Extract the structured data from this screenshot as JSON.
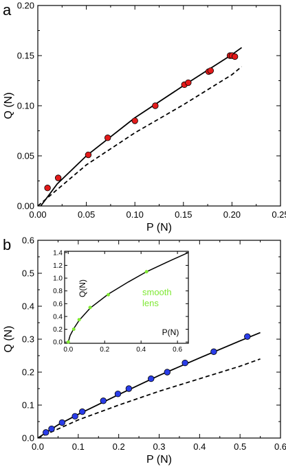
{
  "chart_data": [
    {
      "id": "a",
      "type": "scatter",
      "panel_label": "a",
      "xlabel": "P (N)",
      "ylabel": "Q (N)",
      "xlim": [
        0,
        0.25
      ],
      "ylim": [
        0,
        0.2
      ],
      "x_ticks": [
        "0.00",
        "0.05",
        "0.10",
        "0.15",
        "0.20",
        "0.25"
      ],
      "y_ticks": [
        "0.00",
        "0.05",
        "0.10",
        "0.15",
        "0.20"
      ],
      "x_tick_values": [
        0,
        0.05,
        0.1,
        0.15,
        0.2,
        0.25
      ],
      "y_tick_values": [
        0,
        0.05,
        0.1,
        0.15,
        0.2
      ],
      "marker_color": "#e31b1b",
      "series": [
        {
          "style": "markers",
          "points": [
            [
              0.01,
              0.018
            ],
            [
              0.021,
              0.028
            ],
            [
              0.052,
              0.051
            ],
            [
              0.072,
              0.068
            ],
            [
              0.1,
              0.085
            ],
            [
              0.121,
              0.1
            ],
            [
              0.151,
              0.121
            ],
            [
              0.155,
              0.123
            ],
            [
              0.176,
              0.134
            ],
            [
              0.178,
              0.135
            ],
            [
              0.198,
              0.15
            ],
            [
              0.2,
              0.15
            ],
            [
              0.203,
              0.149
            ]
          ]
        },
        {
          "style": "solid",
          "points": [
            [
              0.003,
              0.0
            ],
            [
              0.02,
              0.022
            ],
            [
              0.05,
              0.05
            ],
            [
              0.1,
              0.088
            ],
            [
              0.15,
              0.12
            ],
            [
              0.2,
              0.151
            ],
            [
              0.21,
              0.158
            ]
          ]
        },
        {
          "style": "dashed",
          "points": [
            [
              0.0,
              0.0
            ],
            [
              0.05,
              0.041
            ],
            [
              0.1,
              0.073
            ],
            [
              0.15,
              0.101
            ],
            [
              0.2,
              0.131
            ],
            [
              0.21,
              0.139
            ]
          ]
        }
      ]
    },
    {
      "id": "b",
      "type": "scatter",
      "panel_label": "b",
      "xlabel": "P (N)",
      "ylabel": "Q (N)",
      "xlim": [
        0,
        0.6
      ],
      "ylim": [
        0,
        0.6
      ],
      "x_ticks": [
        "0.0",
        "0.1",
        "0.2",
        "0.3",
        "0.4",
        "0.5",
        "0.6"
      ],
      "y_ticks": [
        "0.0",
        "0.1",
        "0.2",
        "0.3",
        "0.4",
        "0.5",
        "0.6"
      ],
      "x_tick_values": [
        0,
        0.1,
        0.2,
        0.3,
        0.4,
        0.5,
        0.6
      ],
      "y_tick_values": [
        0,
        0.1,
        0.2,
        0.3,
        0.4,
        0.5,
        0.6
      ],
      "marker_color": "#2a3de8",
      "series": [
        {
          "style": "markers",
          "points": [
            [
              0.02,
              0.017
            ],
            [
              0.034,
              0.028
            ],
            [
              0.06,
              0.047
            ],
            [
              0.092,
              0.066
            ],
            [
              0.11,
              0.08
            ],
            [
              0.162,
              0.113
            ],
            [
              0.198,
              0.134
            ],
            [
              0.225,
              0.15
            ],
            [
              0.28,
              0.18
            ],
            [
              0.32,
              0.2
            ],
            [
              0.364,
              0.228
            ],
            [
              0.435,
              0.262
            ],
            [
              0.518,
              0.308
            ]
          ]
        },
        {
          "style": "solid",
          "points": [
            [
              0.0,
              0.0
            ],
            [
              0.05,
              0.04
            ],
            [
              0.1,
              0.072
            ],
            [
              0.2,
              0.132
            ],
            [
              0.3,
              0.19
            ],
            [
              0.4,
              0.243
            ],
            [
              0.5,
              0.295
            ],
            [
              0.55,
              0.32
            ]
          ]
        },
        {
          "style": "dashed",
          "points": [
            [
              0.0,
              0.0
            ],
            [
              0.1,
              0.055
            ],
            [
              0.2,
              0.1
            ],
            [
              0.3,
              0.142
            ],
            [
              0.4,
              0.18
            ],
            [
              0.5,
              0.218
            ],
            [
              0.55,
              0.24
            ]
          ]
        }
      ]
    },
    {
      "id": "b-inset",
      "type": "scatter",
      "xlabel": "P(N)",
      "ylabel": "Q(N)",
      "annotation": [
        "smooth",
        "lens"
      ],
      "xlim": [
        -0.02,
        0.66
      ],
      "ylim": [
        -0.02,
        1.42
      ],
      "x_ticks": [
        "0.0",
        "0.2",
        "0.4",
        "0.6"
      ],
      "y_ticks": [
        "0.0",
        "0.2",
        "0.4",
        "0.6",
        "0.8",
        "1.0",
        "1.2",
        "1.4"
      ],
      "x_tick_values": [
        0,
        0.2,
        0.4,
        0.6
      ],
      "y_tick_values": [
        0,
        0.2,
        0.4,
        0.6,
        0.8,
        1.0,
        1.2,
        1.4
      ],
      "marker_color": "#7ee832",
      "series": [
        {
          "style": "markers",
          "points": [
            [
              0.0,
              0.0
            ],
            [
              0.03,
              0.2
            ],
            [
              0.06,
              0.35
            ],
            [
              0.12,
              0.54
            ],
            [
              0.22,
              0.74
            ],
            [
              0.43,
              1.1
            ]
          ]
        },
        {
          "style": "solid",
          "points": [
            [
              0.0,
              0.0
            ],
            [
              0.01,
              0.1
            ],
            [
              0.03,
              0.21
            ],
            [
              0.06,
              0.34
            ],
            [
              0.12,
              0.53
            ],
            [
              0.22,
              0.75
            ],
            [
              0.33,
              0.94
            ],
            [
              0.43,
              1.1
            ],
            [
              0.55,
              1.26
            ],
            [
              0.66,
              1.4
            ]
          ]
        }
      ]
    }
  ]
}
